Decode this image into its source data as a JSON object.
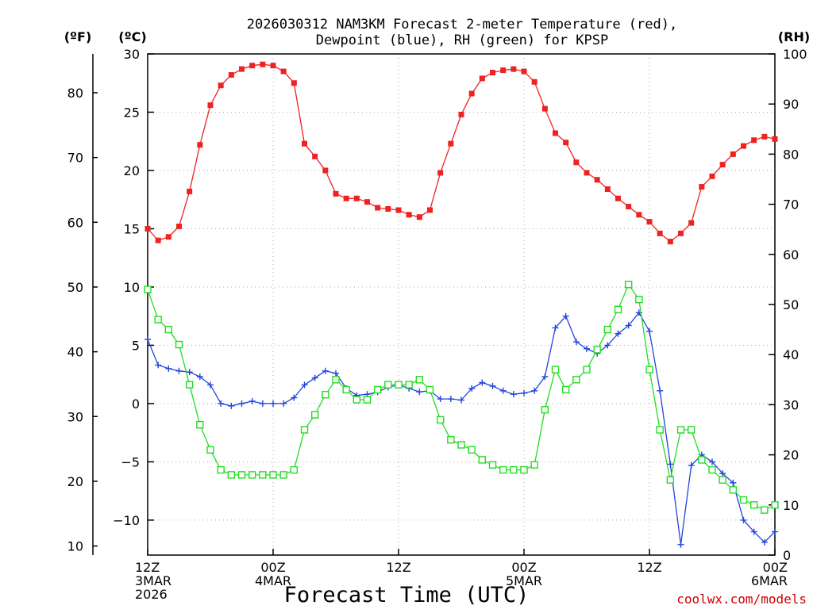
{
  "chart_data": {
    "type": "line",
    "title_line1": "2026030312 NAM3KM Forecast 2-meter Temperature (red),",
    "title_line2": "Dewpoint (blue), RH (green) for KPSP",
    "unit_f": "(ºF)",
    "unit_c": "(ºC)",
    "unit_rh": "(RH)",
    "xlabel": "Forecast Time (UTC)",
    "credit": "coolwx.com/models",
    "x_range": [
      0,
      60
    ],
    "c_range": [
      -13,
      30
    ],
    "rh_range": [
      0,
      100
    ],
    "f_ticks": [
      "10",
      "20",
      "30",
      "40",
      "50",
      "60",
      "70",
      "80"
    ],
    "c_ticks": [
      "−10",
      "−5",
      "0",
      "5",
      "10",
      "15",
      "20",
      "25",
      "30"
    ],
    "rh_ticks": [
      "0",
      "10",
      "20",
      "30",
      "40",
      "50",
      "60",
      "70",
      "80",
      "90",
      "100"
    ],
    "x_ticks": [
      {
        "hour": 0,
        "lines": [
          "12Z",
          "3MAR",
          "2026"
        ]
      },
      {
        "hour": 12,
        "lines": [
          "00Z",
          "4MAR"
        ]
      },
      {
        "hour": 24,
        "lines": [
          "12Z"
        ]
      },
      {
        "hour": 36,
        "lines": [
          "00Z",
          "5MAR"
        ]
      },
      {
        "hour": 48,
        "lines": [
          "12Z"
        ]
      },
      {
        "hour": 60,
        "lines": [
          "00Z",
          "6MAR"
        ]
      }
    ],
    "series": [
      {
        "name": "Temperature (°C)",
        "axis": "c",
        "color": "#ee2222",
        "marker": "filled-square",
        "values": [
          15.0,
          14.0,
          14.3,
          15.2,
          18.2,
          22.2,
          25.6,
          27.3,
          28.2,
          28.7,
          29.0,
          29.1,
          29.0,
          28.5,
          27.5,
          22.3,
          21.2,
          20.0,
          18.0,
          17.6,
          17.6,
          17.3,
          16.8,
          16.7,
          16.6,
          16.2,
          16.0,
          16.6,
          19.8,
          22.3,
          24.8,
          26.6,
          27.9,
          28.4,
          28.6,
          28.7,
          28.5,
          27.6,
          25.3,
          23.2,
          22.4,
          20.7,
          19.8,
          19.2,
          18.4,
          17.6,
          16.9,
          16.2,
          15.6,
          14.6,
          13.9,
          14.6,
          15.5,
          18.6,
          19.5,
          20.5,
          21.4,
          22.1,
          22.6,
          22.9,
          22.7
        ]
      },
      {
        "name": "Dewpoint (°C)",
        "axis": "c",
        "color": "#2244dd",
        "marker": "plus",
        "values": [
          5.5,
          3.3,
          3.0,
          2.8,
          2.7,
          2.3,
          1.6,
          0.0,
          -0.2,
          0.0,
          0.2,
          0.0,
          0.0,
          0.0,
          0.5,
          1.6,
          2.2,
          2.8,
          2.6,
          1.3,
          0.7,
          0.8,
          1.0,
          1.4,
          1.6,
          1.3,
          1.0,
          1.1,
          0.4,
          0.4,
          0.3,
          1.3,
          1.8,
          1.5,
          1.1,
          0.8,
          0.9,
          1.1,
          2.3,
          6.5,
          7.5,
          5.3,
          4.7,
          4.3,
          5.0,
          6.0,
          6.7,
          7.8,
          6.2,
          1.1,
          -5.2,
          -12.1,
          -5.3,
          -4.4,
          -5.0,
          -6.0,
          -6.8,
          -10.0,
          -11.0,
          -11.9,
          -11.0
        ]
      },
      {
        "name": "Relative Humidity (%)",
        "axis": "rh",
        "color": "#22dd22",
        "marker": "open-square",
        "values": [
          53,
          47,
          45,
          42,
          34,
          26,
          21,
          17,
          16,
          16,
          16,
          16,
          16,
          16,
          17,
          25,
          28,
          32,
          35,
          33,
          31,
          31,
          33,
          34,
          34,
          34,
          35,
          33,
          27,
          23,
          22,
          21,
          19,
          18,
          17,
          17,
          17,
          18,
          29,
          37,
          33,
          35,
          37,
          41,
          45,
          49,
          54,
          51,
          37,
          25,
          15,
          25,
          25,
          19,
          17,
          15,
          13,
          11,
          10,
          9,
          10
        ]
      }
    ]
  }
}
